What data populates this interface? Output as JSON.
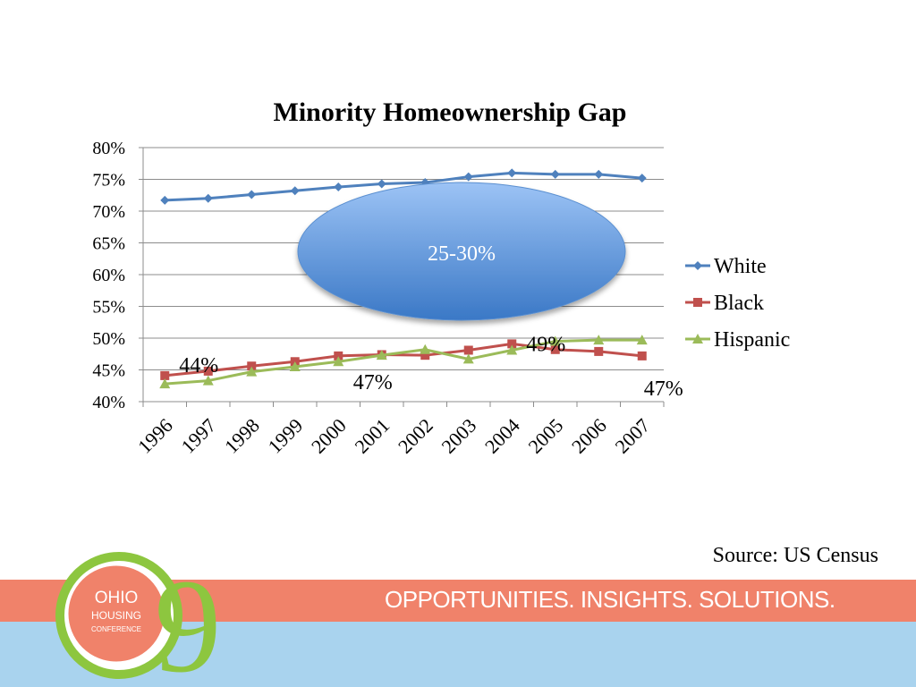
{
  "chart_data": {
    "type": "line",
    "title": "Minority Homeownership Gap",
    "categories": [
      "1996",
      "1997",
      "1998",
      "1999",
      "2000",
      "2001",
      "2002",
      "2003",
      "2004",
      "2005",
      "2006",
      "2007"
    ],
    "ylim": [
      40,
      80
    ],
    "yticks": [
      "80%",
      "75%",
      "70%",
      "65%",
      "60%",
      "55%",
      "50%",
      "45%",
      "40%"
    ],
    "ytick_values": [
      80,
      75,
      70,
      65,
      60,
      55,
      50,
      45,
      40
    ],
    "grid": true,
    "legend_position": "right",
    "series": [
      {
        "name": "White",
        "color": "#4f81bd",
        "marker": "diamond",
        "values": [
          71.7,
          72.0,
          72.6,
          73.2,
          73.8,
          74.3,
          74.5,
          75.4,
          76.0,
          75.8,
          75.8,
          75.2
        ]
      },
      {
        "name": "Black",
        "color": "#c0504d",
        "marker": "square",
        "values": [
          44.1,
          44.8,
          45.6,
          46.3,
          47.2,
          47.4,
          47.3,
          48.1,
          49.1,
          48.2,
          47.9,
          47.2
        ]
      },
      {
        "name": "Hispanic",
        "color": "#9bbb59",
        "marker": "triangle",
        "values": [
          42.8,
          43.3,
          44.7,
          45.5,
          46.3,
          47.3,
          48.2,
          46.7,
          48.1,
          49.5,
          49.7,
          49.7
        ]
      }
    ],
    "annotations": [
      {
        "text": "44%",
        "category": "1996",
        "value": 44.1
      },
      {
        "text": "47%",
        "category": "2001",
        "value": 47.3
      },
      {
        "text": "49%",
        "category": "2004",
        "value": 49.1
      },
      {
        "text": "47%",
        "category": "2007",
        "value": 47.2
      }
    ],
    "callout": {
      "text": "25-30%"
    }
  },
  "source": "Source: US Census",
  "footer": {
    "tagline": "OPPORTUNITIES. INSIGHTS. SOLUTIONS.",
    "logo": {
      "line1": "OHIO",
      "line2": "HOUSING",
      "line3": "CONFERENCE",
      "numeral": "9"
    }
  }
}
